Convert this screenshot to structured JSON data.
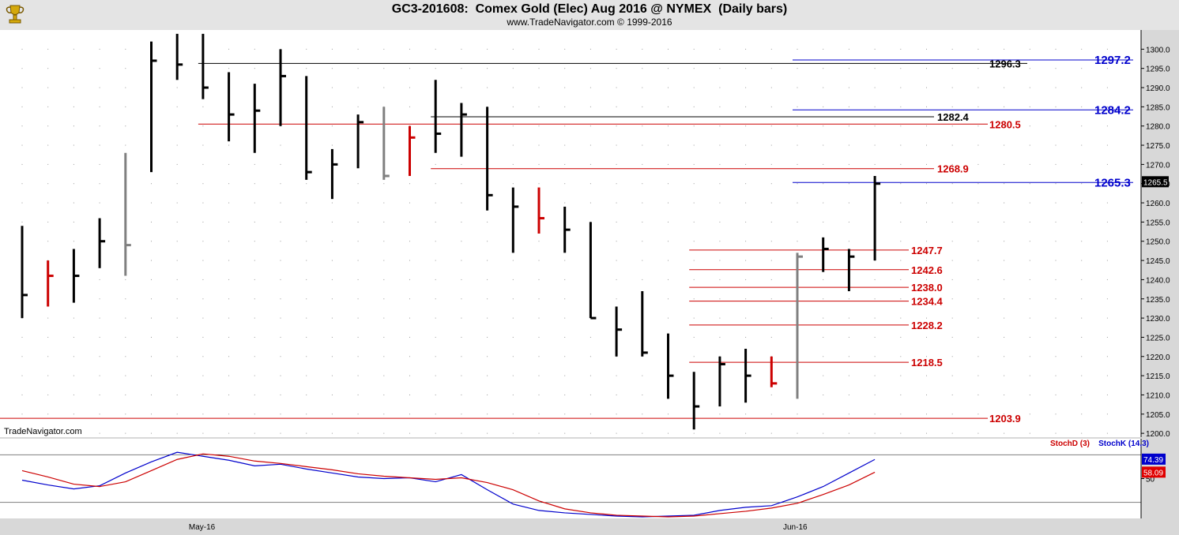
{
  "header": {
    "title": "GC3-201608:  Comex Gold (Elec) Aug 2016 @ NYMEX  (Daily bars)",
    "subtitle": "www.TradeNavigator.com © 1999-2016"
  },
  "watermark": "TradeNavigator.com",
  "colors": {
    "bar_default": "#000000",
    "bar_down": "#e00000",
    "bar_neutral": "#808080",
    "bar_up": "#00cc00",
    "fib_red": "#cc0000",
    "fib_blue": "#0000cc",
    "stoch_d": "#cc0000",
    "stoch_k": "#0000cc"
  },
  "chart_data": [
    {
      "type": "ohlc",
      "ylim": [
        1199,
        1305
      ],
      "y_ticks": [
        1200,
        1205,
        1210,
        1215,
        1220,
        1225,
        1230,
        1235,
        1240,
        1245,
        1250,
        1255,
        1260,
        1265,
        1270,
        1275,
        1280,
        1285,
        1290,
        1295,
        1300
      ],
      "x_labels": [
        {
          "index": 7,
          "label": "May-16"
        },
        {
          "index": 30,
          "label": "Jun-16"
        }
      ],
      "last_price": "1265.5",
      "bars": [
        {
          "o": null,
          "h": 1254,
          "l": 1230,
          "c": 1236,
          "color": "black"
        },
        {
          "o": null,
          "h": 1245,
          "l": 1233,
          "c": 1241,
          "color": "red"
        },
        {
          "o": null,
          "h": 1248,
          "l": 1234,
          "c": 1241,
          "color": "black"
        },
        {
          "o": null,
          "h": 1256,
          "l": 1243,
          "c": 1250,
          "color": "black"
        },
        {
          "o": null,
          "h": 1273,
          "l": 1241,
          "c": 1249,
          "color": "gray"
        },
        {
          "o": null,
          "h": 1302,
          "l": 1268,
          "c": 1297,
          "color": "black"
        },
        {
          "o": null,
          "h": 1304,
          "l": 1292,
          "c": 1296,
          "color": "black"
        },
        {
          "o": null,
          "h": 1304,
          "l": 1287,
          "c": 1290,
          "color": "black"
        },
        {
          "o": null,
          "h": 1294,
          "l": 1276,
          "c": 1283,
          "color": "black"
        },
        {
          "o": null,
          "h": 1291,
          "l": 1273,
          "c": 1284,
          "color": "black"
        },
        {
          "o": null,
          "h": 1300,
          "l": 1280,
          "c": 1293,
          "color": "black"
        },
        {
          "o": null,
          "h": 1293,
          "l": 1266,
          "c": 1268,
          "color": "black"
        },
        {
          "o": null,
          "h": 1274,
          "l": 1261,
          "c": 1270,
          "color": "black"
        },
        {
          "o": null,
          "h": 1283,
          "l": 1269,
          "c": 1281,
          "color": "black"
        },
        {
          "o": null,
          "h": 1285,
          "l": 1266,
          "c": 1267,
          "color": "gray"
        },
        {
          "o": null,
          "h": 1280,
          "l": 1267,
          "c": 1277,
          "color": "red"
        },
        {
          "o": null,
          "h": 1292,
          "l": 1273,
          "c": 1278,
          "color": "black"
        },
        {
          "o": null,
          "h": 1286,
          "l": 1272,
          "c": 1283,
          "color": "black"
        },
        {
          "o": null,
          "h": 1285,
          "l": 1258,
          "c": 1262,
          "color": "black"
        },
        {
          "o": null,
          "h": 1264,
          "l": 1247,
          "c": 1259,
          "color": "black"
        },
        {
          "o": null,
          "h": 1264,
          "l": 1252,
          "c": 1256,
          "color": "red"
        },
        {
          "o": null,
          "h": 1259,
          "l": 1247,
          "c": 1253,
          "color": "black"
        },
        {
          "o": null,
          "h": 1255,
          "l": 1230,
          "c": 1230,
          "color": "black"
        },
        {
          "o": null,
          "h": 1233,
          "l": 1220,
          "c": 1227,
          "color": "black"
        },
        {
          "o": null,
          "h": 1237,
          "l": 1220,
          "c": 1221,
          "color": "black"
        },
        {
          "o": null,
          "h": 1226,
          "l": 1209,
          "c": 1215,
          "color": "black"
        },
        {
          "o": null,
          "h": 1216,
          "l": 1201,
          "c": 1207,
          "color": "black"
        },
        {
          "o": null,
          "h": 1220,
          "l": 1207,
          "c": 1218,
          "color": "black"
        },
        {
          "o": null,
          "h": 1222,
          "l": 1208,
          "c": 1215,
          "color": "black"
        },
        {
          "o": null,
          "h": 1220,
          "l": 1212,
          "c": 1213,
          "color": "red"
        },
        {
          "o": null,
          "h": 1247,
          "l": 1209,
          "c": 1246,
          "color": "gray"
        },
        {
          "o": null,
          "h": 1251,
          "l": 1242,
          "c": 1248,
          "color": "black"
        },
        {
          "o": null,
          "h": 1248,
          "l": 1237,
          "c": 1246,
          "color": "black"
        },
        {
          "o": null,
          "h": 1267,
          "l": 1245,
          "c": 1265,
          "color": "black"
        }
      ],
      "levels": [
        {
          "label": "1297.2",
          "value": 1297.2,
          "color": "blue",
          "start_index": 30
        },
        {
          "label": "1296.3",
          "value": 1296.3,
          "color": "black",
          "start_index": 7
        },
        {
          "label": "1284.2",
          "value": 1284.2,
          "color": "blue",
          "start_index": 30
        },
        {
          "label": "1282.4",
          "value": 1282.4,
          "color": "black",
          "start_index": 16
        },
        {
          "label": "1280.5",
          "value": 1280.5,
          "color": "red",
          "start_index": 7
        },
        {
          "label": "1268.9",
          "value": 1268.9,
          "color": "red",
          "start_index": 16
        },
        {
          "label": "1265.3",
          "value": 1265.3,
          "color": "blue",
          "start_index": 30
        },
        {
          "label": "1247.7",
          "value": 1247.7,
          "color": "red",
          "start_index": 26
        },
        {
          "label": "1242.6",
          "value": 1242.6,
          "color": "red",
          "start_index": 26
        },
        {
          "label": "1238.0",
          "value": 1238.0,
          "color": "red",
          "start_index": 26
        },
        {
          "label": "1234.4",
          "value": 1234.4,
          "color": "red",
          "start_index": 26
        },
        {
          "label": "1228.2",
          "value": 1228.2,
          "color": "red",
          "start_index": 26
        },
        {
          "label": "1218.5",
          "value": 1218.5,
          "color": "red",
          "start_index": 26
        },
        {
          "label": "1203.9",
          "value": 1203.9,
          "color": "red",
          "start_index": 0
        }
      ]
    },
    {
      "type": "line",
      "ylim": [
        0,
        100
      ],
      "y_ticks": [
        50
      ],
      "legend": [
        "StochD (3)",
        "StochK (14,3)"
      ],
      "last_k": "74.39",
      "last_d": "58.09",
      "series": [
        {
          "name": "StochK (14,3)",
          "color": "blue",
          "values": [
            48,
            42,
            37,
            41,
            57,
            71,
            83,
            78,
            73,
            66,
            68,
            62,
            57,
            52,
            50,
            51,
            46,
            55,
            36,
            18,
            10,
            7,
            5,
            3,
            2,
            3,
            4,
            10,
            14,
            16,
            27,
            40,
            57,
            74
          ]
        },
        {
          "name": "StochD (3)",
          "color": "red",
          "values": [
            60,
            52,
            43,
            40,
            46,
            60,
            74,
            81,
            78,
            72,
            69,
            65,
            61,
            56,
            53,
            51,
            49,
            51,
            45,
            36,
            22,
            12,
            7,
            4,
            3,
            2,
            3,
            6,
            9,
            13,
            19,
            30,
            42,
            58
          ]
        }
      ]
    }
  ],
  "stoch_legend": {
    "d": "StochD (3)",
    "k": "StochK (14,3)"
  }
}
